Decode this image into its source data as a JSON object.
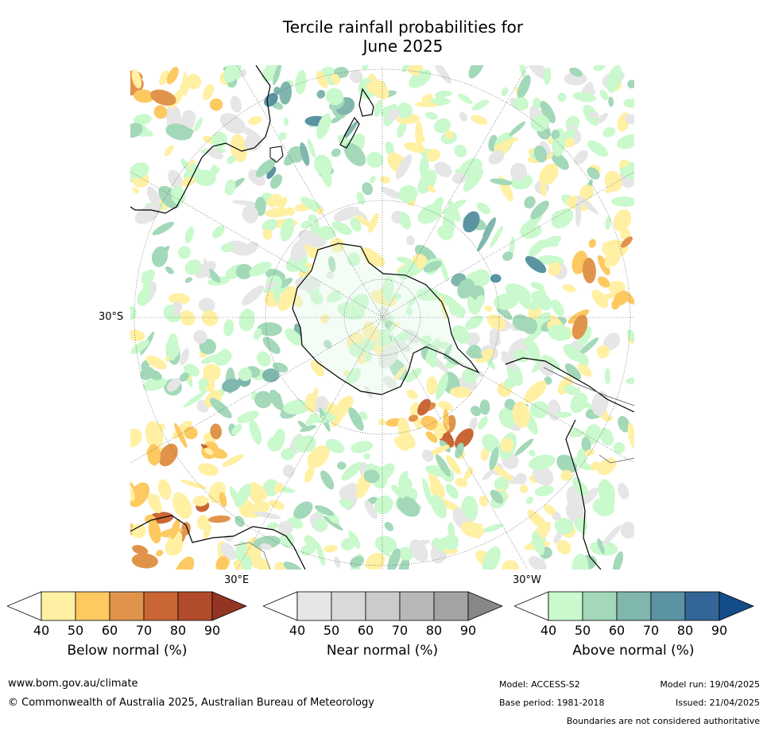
{
  "title_line1": "Tercile rainfall probabilities for",
  "title_line2": "June 2025",
  "axis_labels": {
    "lat": "30°S",
    "lon_e": "30°E",
    "lon_w": "30°W"
  },
  "colorbars": [
    {
      "title": "Below normal (%)",
      "ticks": [
        "40",
        "50",
        "60",
        "70",
        "80",
        "90"
      ],
      "colors": [
        "#fff0a4",
        "#fdc961",
        "#e0944b",
        "#c96634",
        "#b24b2c",
        "#943524"
      ]
    },
    {
      "title": "Near normal (%)",
      "ticks": [
        "40",
        "50",
        "60",
        "70",
        "80",
        "90"
      ],
      "colors": [
        "#e6e6e6",
        "#d9d9d9",
        "#cbcbcb",
        "#b8b8b8",
        "#a3a3a3",
        "#878787"
      ]
    },
    {
      "title": "Above normal (%)",
      "ticks": [
        "40",
        "50",
        "60",
        "70",
        "80",
        "90"
      ],
      "colors": [
        "#c9f9cc",
        "#a3d8b9",
        "#7fb6ae",
        "#5b93a2",
        "#336697",
        "#134c88"
      ]
    }
  ],
  "footer": {
    "url": "www.bom.gov.au/climate",
    "copyright": "© Commonwealth of Australia 2025, Australian Bureau of Meteorology",
    "model": "Model: ACCESS-S2",
    "model_run": "Model run: 19/04/2025",
    "base_period": "Base period: 1981-2018",
    "issued": "Issued: 21/04/2025",
    "disclaimer": "Boundaries are not considered authoritative"
  },
  "colors": {
    "land_outline": "#000000",
    "grid_line": "#444444",
    "background": "#ffffff"
  }
}
